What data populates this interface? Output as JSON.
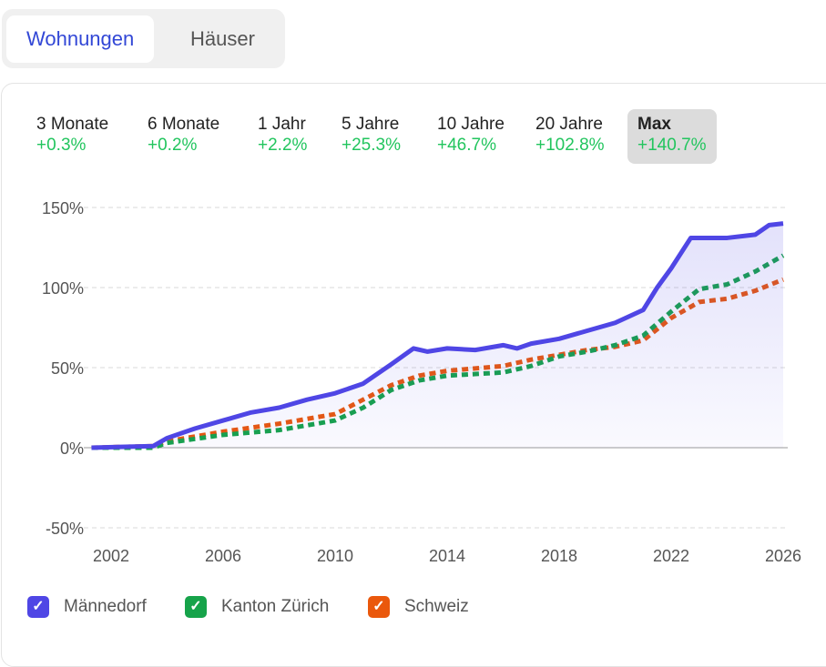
{
  "tabs": [
    "Wohnungen",
    "Häuser"
  ],
  "periods": [
    {
      "label": "3 Monate",
      "value": "+0.3%"
    },
    {
      "label": "6 Monate",
      "value": "+0.2%"
    },
    {
      "label": "1 Jahr",
      "value": "+2.2%"
    },
    {
      "label": "5 Jahre",
      "value": "+25.3%"
    },
    {
      "label": "10 Jahre",
      "value": "+46.7%"
    },
    {
      "label": "20 Jahre",
      "value": "+102.8%"
    },
    {
      "label": "Max",
      "value": "+140.7%"
    }
  ],
  "chart_data": {
    "type": "line",
    "title": "",
    "xlabel": "",
    "ylabel": "",
    "xlim": [
      2001.3,
      2026
    ],
    "ylim": [
      -50,
      150
    ],
    "xticks": [
      2002,
      2006,
      2010,
      2014,
      2018,
      2022,
      2026
    ],
    "yticks": [
      -50,
      0,
      50,
      100,
      150
    ],
    "ytick_labels": [
      "-50%",
      "0%",
      "50%",
      "100%",
      "150%"
    ],
    "legend_position": "bottom-left",
    "series": [
      {
        "name": "Männedorf",
        "color": "#4f46e5",
        "style": "solid",
        "fill": true,
        "x": [
          2001.3,
          2003.5,
          2004,
          2005,
          2006,
          2007,
          2008,
          2009,
          2010,
          2011,
          2012,
          2012.8,
          2013.3,
          2014,
          2015,
          2016,
          2016.5,
          2017,
          2018,
          2019,
          2020,
          2021,
          2021.5,
          2022,
          2022.7,
          2023,
          2024,
          2025,
          2025.5,
          2026
        ],
        "y": [
          0,
          1,
          6,
          12,
          17,
          22,
          25,
          30,
          34,
          40,
          52,
          62,
          60,
          62,
          61,
          64,
          62,
          65,
          68,
          73,
          78,
          86,
          100,
          112,
          131,
          131,
          131,
          133,
          139,
          140
        ]
      },
      {
        "name": "Kanton Zürich",
        "color": "#16a34a",
        "style": "dashed",
        "x": [
          2001.3,
          2003.5,
          2004,
          2006,
          2008,
          2010,
          2011,
          2012,
          2013,
          2014,
          2015,
          2016,
          2017,
          2018,
          2019,
          2020,
          2021,
          2022,
          2023,
          2024,
          2025,
          2026
        ],
        "y": [
          0,
          0,
          3,
          8,
          11,
          17,
          25,
          36,
          42,
          45,
          46,
          47,
          51,
          57,
          60,
          64,
          70,
          85,
          99,
          102,
          110,
          120
        ]
      },
      {
        "name": "Schweiz",
        "color": "#ea580c",
        "style": "dashed",
        "x": [
          2001.3,
          2003.5,
          2004,
          2006,
          2008,
          2010,
          2011,
          2012,
          2013,
          2014,
          2016,
          2017,
          2018,
          2019,
          2020,
          2021,
          2022,
          2023,
          2024,
          2025,
          2026
        ],
        "y": [
          0,
          1,
          4,
          10,
          15,
          21,
          30,
          39,
          45,
          48,
          51,
          55,
          58,
          61,
          63,
          67,
          81,
          91,
          93,
          98,
          105
        ]
      }
    ]
  }
}
